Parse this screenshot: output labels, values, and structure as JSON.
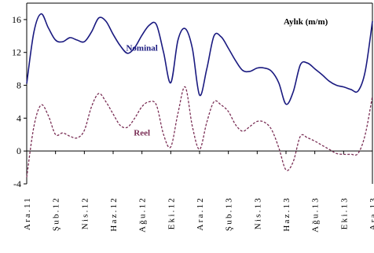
{
  "chart_data": {
    "type": "line",
    "title": "",
    "xlabel": "",
    "ylabel": "",
    "ylim": [
      -4,
      18
    ],
    "yticks": [
      -4,
      0,
      4,
      8,
      12,
      16
    ],
    "grid": false,
    "legend": "none",
    "annotation": "Aylık (m/m)",
    "categories": [
      "Ara.11",
      "Şub.12",
      "Nis.12",
      "Haz.12",
      "Ağu.12",
      "Eki.12",
      "Ara.12",
      "Şub.13",
      "Nis.13",
      "Haz.13",
      "Ağu.13",
      "Eki.13",
      "Ara.13"
    ],
    "x": [
      0,
      0.5,
      1,
      1.5,
      2,
      2.5,
      3,
      3.5,
      4,
      4.5,
      5,
      5.5,
      6,
      6.5,
      7,
      7.5,
      8,
      8.5,
      9,
      9.5,
      10,
      10.5,
      11,
      11.5,
      12,
      12.5,
      13,
      13.5,
      14,
      14.5,
      15,
      15.5,
      16,
      16.5,
      17,
      17.5,
      18,
      18.5,
      19,
      19.5,
      20,
      20.5,
      21,
      21.5,
      22,
      22.5,
      23,
      23.5,
      24
    ],
    "series": [
      {
        "name": "Nominal",
        "color": "#1a1a80",
        "dash": "solid",
        "values": [
          8.2,
          14.5,
          16.7,
          15.0,
          13.5,
          13.3,
          13.8,
          13.5,
          13.3,
          14.5,
          16.2,
          15.8,
          14.2,
          12.8,
          11.9,
          12.6,
          14.1,
          15.3,
          15.4,
          12.0,
          8.3,
          13.5,
          14.9,
          12.5,
          6.8,
          10.0,
          14.0,
          13.9,
          12.5,
          11.0,
          9.8,
          9.7,
          10.1,
          10.1,
          9.7,
          8.3,
          5.7,
          7.2,
          10.5,
          10.7,
          10.0,
          9.3,
          8.5,
          8.0,
          7.8,
          7.5,
          7.3,
          9.7,
          15.8
        ]
      },
      {
        "name": "Reel",
        "color": "#7a2e55",
        "dash": "dashed",
        "values": [
          -3.2,
          3.0,
          5.6,
          4.3,
          2.0,
          2.2,
          1.8,
          1.6,
          2.5,
          5.4,
          7.0,
          6.0,
          4.5,
          3.1,
          2.9,
          4.0,
          5.4,
          6.0,
          5.6,
          2.0,
          0.5,
          4.6,
          7.8,
          3.0,
          0.2,
          3.5,
          6.0,
          5.6,
          4.8,
          3.2,
          2.4,
          3.0,
          3.6,
          3.5,
          2.6,
          0.4,
          -2.3,
          -1.3,
          1.8,
          1.6,
          1.2,
          0.7,
          0.2,
          -0.3,
          -0.4,
          -0.4,
          -0.3,
          2.0,
          6.7
        ]
      }
    ]
  }
}
